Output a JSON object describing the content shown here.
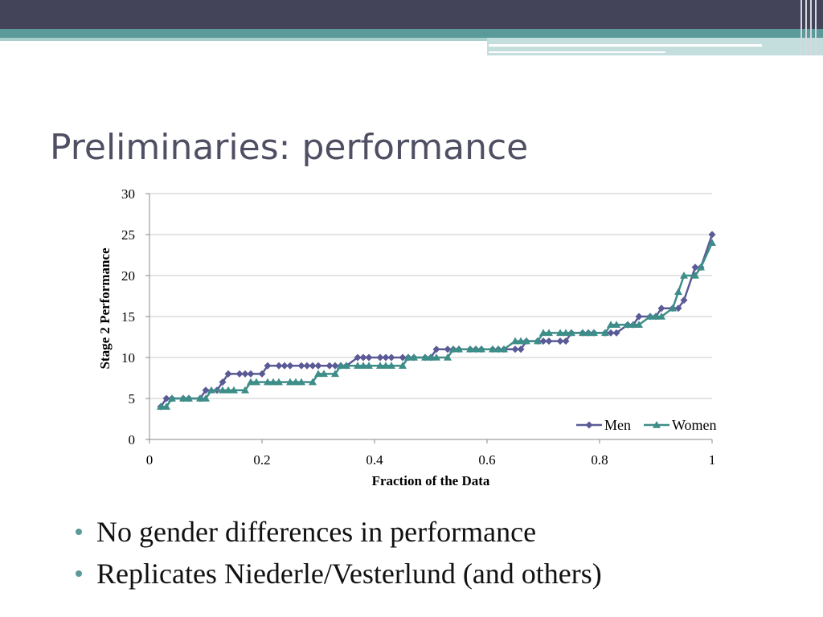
{
  "slide": {
    "title": "Preliminaries: performance",
    "bullets": [
      "No gender differences in performance",
      "Replicates Niederle/Vesterlund (and others)"
    ],
    "colors": {
      "header_dark": "#434359",
      "header_teal": "#5a9a99",
      "bullet": "#5a9a99",
      "title": "#4f4f64"
    }
  },
  "chart_data": {
    "type": "line",
    "title": "",
    "xlabel": "Fraction of the Data",
    "ylabel": "Stage 2 Performance",
    "xlim": [
      0,
      1
    ],
    "ylim": [
      0,
      30
    ],
    "x_ticks": [
      "0",
      "0.2",
      "0.4",
      "0.6",
      "0.8",
      "1"
    ],
    "y_ticks": [
      "0",
      "5",
      "10",
      "15",
      "20",
      "25",
      "30"
    ],
    "grid": "horizontal",
    "legend": "bottom-right",
    "series": [
      {
        "name": "Men",
        "color": "#5a5a96",
        "marker": "diamond",
        "x": [
          0.02,
          0.03,
          0.04,
          0.06,
          0.07,
          0.09,
          0.1,
          0.12,
          0.13,
          0.14,
          0.16,
          0.17,
          0.18,
          0.2,
          0.21,
          0.23,
          0.24,
          0.25,
          0.27,
          0.28,
          0.29,
          0.3,
          0.32,
          0.33,
          0.34,
          0.35,
          0.37,
          0.38,
          0.39,
          0.41,
          0.42,
          0.43,
          0.45,
          0.46,
          0.47,
          0.49,
          0.5,
          0.51,
          0.53,
          0.54,
          0.55,
          0.57,
          0.58,
          0.59,
          0.61,
          0.62,
          0.63,
          0.65,
          0.66,
          0.67,
          0.69,
          0.7,
          0.71,
          0.73,
          0.74,
          0.75,
          0.77,
          0.78,
          0.79,
          0.81,
          0.82,
          0.83,
          0.85,
          0.86,
          0.87,
          0.89,
          0.9,
          0.91,
          0.93,
          0.94,
          0.95,
          0.97,
          0.98,
          1.0
        ],
        "y": [
          4,
          5,
          5,
          5,
          5,
          5,
          6,
          6,
          7,
          8,
          8,
          8,
          8,
          8,
          9,
          9,
          9,
          9,
          9,
          9,
          9,
          9,
          9,
          9,
          9,
          9,
          10,
          10,
          10,
          10,
          10,
          10,
          10,
          10,
          10,
          10,
          10,
          11,
          11,
          11,
          11,
          11,
          11,
          11,
          11,
          11,
          11,
          11,
          11,
          12,
          12,
          12,
          12,
          12,
          12,
          13,
          13,
          13,
          13,
          13,
          13,
          13,
          14,
          14,
          15,
          15,
          15,
          16,
          16,
          16,
          17,
          21,
          21,
          25
        ]
      },
      {
        "name": "Women",
        "color": "#3d8d88",
        "marker": "triangle",
        "x": [
          0.02,
          0.03,
          0.04,
          0.06,
          0.07,
          0.09,
          0.1,
          0.11,
          0.13,
          0.14,
          0.15,
          0.17,
          0.18,
          0.19,
          0.21,
          0.22,
          0.23,
          0.25,
          0.26,
          0.27,
          0.29,
          0.3,
          0.31,
          0.33,
          0.34,
          0.35,
          0.37,
          0.38,
          0.39,
          0.41,
          0.42,
          0.43,
          0.45,
          0.46,
          0.47,
          0.49,
          0.5,
          0.51,
          0.53,
          0.54,
          0.55,
          0.57,
          0.58,
          0.59,
          0.61,
          0.62,
          0.63,
          0.65,
          0.66,
          0.67,
          0.69,
          0.7,
          0.71,
          0.73,
          0.74,
          0.75,
          0.77,
          0.78,
          0.79,
          0.81,
          0.82,
          0.83,
          0.85,
          0.86,
          0.87,
          0.89,
          0.9,
          0.91,
          0.93,
          0.94,
          0.95,
          0.97,
          0.98,
          1.0
        ],
        "y": [
          4,
          4,
          5,
          5,
          5,
          5,
          5,
          6,
          6,
          6,
          6,
          6,
          7,
          7,
          7,
          7,
          7,
          7,
          7,
          7,
          7,
          8,
          8,
          8,
          9,
          9,
          9,
          9,
          9,
          9,
          9,
          9,
          9,
          10,
          10,
          10,
          10,
          10,
          10,
          11,
          11,
          11,
          11,
          11,
          11,
          11,
          11,
          12,
          12,
          12,
          12,
          13,
          13,
          13,
          13,
          13,
          13,
          13,
          13,
          13,
          14,
          14,
          14,
          14,
          14,
          15,
          15,
          15,
          16,
          18,
          20,
          20,
          21,
          24
        ]
      }
    ]
  }
}
